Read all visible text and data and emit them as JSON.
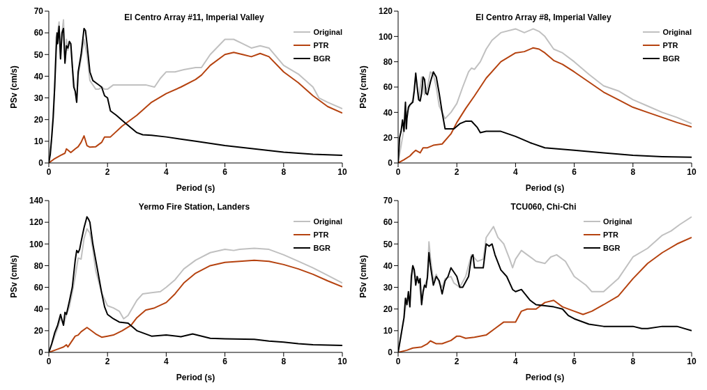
{
  "chart_data": [
    {
      "type": "line",
      "title": "El Centro Array #11, Imperial Valley",
      "xlabel": "Period (s)",
      "ylabel": "PSv (cm/s)",
      "xlim": [
        0,
        10
      ],
      "ylim": [
        0,
        70
      ],
      "xticks": [
        0,
        2,
        4,
        6,
        8,
        10
      ],
      "yticks": [
        0,
        10,
        20,
        30,
        40,
        50,
        60,
        70
      ],
      "legend": "top right",
      "series": [
        {
          "name": "Original",
          "color": "#c0c0c0",
          "x": [
            0,
            0.1,
            0.2,
            0.25,
            0.3,
            0.35,
            0.4,
            0.45,
            0.5,
            0.55,
            0.6,
            0.65,
            0.7,
            0.75,
            0.8,
            0.9,
            0.95,
            1.0,
            1.1,
            1.2,
            1.3,
            1.4,
            1.5,
            1.6,
            1.7,
            1.8,
            1.9,
            2.0,
            2.2,
            2.5,
            3.0,
            3.3,
            3.6,
            3.8,
            4.0,
            4.3,
            4.6,
            5.0,
            5.2,
            5.5,
            6.0,
            6.3,
            6.6,
            6.9,
            7.2,
            7.5,
            8.0,
            8.5,
            9.0,
            9.2,
            9.5,
            10
          ],
          "values": [
            0,
            12,
            35,
            58,
            60,
            65,
            48,
            60,
            66,
            47,
            57,
            52,
            56,
            54,
            44,
            33,
            28,
            40,
            48,
            57,
            50,
            38,
            36,
            34,
            34,
            35,
            34,
            34,
            36,
            36,
            36,
            36,
            35,
            39,
            42,
            42,
            43,
            44,
            44,
            50,
            57,
            57,
            55,
            53,
            54,
            53,
            45,
            41,
            35,
            30,
            28,
            25
          ]
        },
        {
          "name": "PTR",
          "color": "#b5420f",
          "x": [
            0,
            0.2,
            0.4,
            0.55,
            0.6,
            0.75,
            0.9,
            1.0,
            1.1,
            1.2,
            1.3,
            1.4,
            1.6,
            1.8,
            1.9,
            2.0,
            2.1,
            2.5,
            3.0,
            3.5,
            4.0,
            4.5,
            5.0,
            5.2,
            5.5,
            6.0,
            6.3,
            6.6,
            6.9,
            7.2,
            7.5,
            8.0,
            8.5,
            9.0,
            9.5,
            10
          ],
          "values": [
            0,
            2,
            3.5,
            4.5,
            6.5,
            4.8,
            6.5,
            7.5,
            9.5,
            12.5,
            8,
            7.3,
            7.5,
            9.5,
            12,
            12,
            12,
            17,
            22,
            28,
            32,
            35,
            38.5,
            40.5,
            45,
            50,
            51,
            50,
            49,
            50.5,
            49,
            42,
            37,
            31,
            26,
            23
          ]
        },
        {
          "name": "BGR",
          "color": "#000000",
          "x": [
            0,
            0.05,
            0.1,
            0.15,
            0.2,
            0.25,
            0.28,
            0.3,
            0.35,
            0.4,
            0.45,
            0.5,
            0.55,
            0.6,
            0.65,
            0.7,
            0.75,
            0.8,
            0.85,
            0.9,
            0.95,
            1.0,
            1.05,
            1.1,
            1.2,
            1.25,
            1.3,
            1.4,
            1.5,
            1.6,
            1.8,
            1.9,
            2.0,
            2.1,
            2.3,
            2.6,
            3.0,
            3.2,
            3.5,
            4,
            5,
            6,
            7,
            8,
            9,
            10
          ],
          "values": [
            0,
            4,
            12,
            21,
            35,
            52,
            60,
            55,
            63,
            48,
            60,
            62,
            46,
            54,
            53,
            56,
            55,
            45,
            35,
            33,
            28,
            42,
            46,
            50,
            62,
            61,
            55,
            42,
            38,
            37,
            35,
            31,
            30,
            24,
            22,
            18.5,
            14,
            13,
            12.8,
            12,
            10,
            8,
            6.5,
            5,
            4,
            3.5
          ]
        }
      ]
    },
    {
      "type": "line",
      "title": "El Centro Array #8, Imperial Valley",
      "xlabel": "Period (s)",
      "ylabel": "PSv (cm/s)",
      "xlim": [
        0,
        10
      ],
      "ylim": [
        0,
        120
      ],
      "xticks": [
        0,
        2,
        4,
        6,
        8,
        10
      ],
      "yticks": [
        0,
        20,
        40,
        60,
        80,
        100,
        120
      ],
      "legend": "top right",
      "series": [
        {
          "name": "Original",
          "color": "#c0c0c0",
          "x": [
            0,
            0.2,
            0.3,
            0.5,
            0.6,
            0.7,
            0.8,
            0.9,
            1.0,
            1.1,
            1.2,
            1.3,
            1.4,
            1.5,
            1.6,
            1.8,
            2.0,
            2.2,
            2.4,
            2.5,
            2.6,
            2.8,
            3.0,
            3.2,
            3.5,
            4.0,
            4.3,
            4.6,
            4.8,
            5.0,
            5.3,
            5.6,
            6.0,
            6.5,
            7.0,
            7.5,
            8.0,
            8.5,
            9.0,
            9.5,
            10
          ],
          "values": [
            0,
            27,
            40,
            50,
            69,
            50,
            68,
            54,
            60,
            72,
            70,
            60,
            45,
            40,
            35,
            40,
            47,
            60,
            72,
            75,
            74,
            80,
            90,
            97,
            103,
            106,
            103,
            106,
            104,
            100,
            90,
            87,
            80,
            70,
            61,
            57,
            50,
            45,
            40,
            36,
            31
          ]
        },
        {
          "name": "PTR",
          "color": "#b5420f",
          "x": [
            0,
            0.2,
            0.4,
            0.5,
            0.6,
            0.75,
            0.85,
            1.0,
            1.2,
            1.5,
            1.8,
            2.0,
            2.3,
            2.6,
            3.0,
            3.5,
            4.0,
            4.3,
            4.6,
            4.8,
            5.0,
            5.3,
            5.6,
            6.0,
            6.5,
            7.0,
            7.5,
            8.0,
            8.5,
            9.0,
            9.5,
            10
          ],
          "values": [
            0,
            2.5,
            5.5,
            8,
            10,
            8,
            12,
            12,
            14,
            15,
            23,
            32,
            43,
            53,
            67,
            80,
            87,
            88,
            91,
            90,
            87,
            81,
            78,
            72,
            64,
            56,
            50,
            44,
            40,
            36,
            32,
            28.5
          ]
        },
        {
          "name": "BGR",
          "color": "#000000",
          "x": [
            0,
            0.05,
            0.1,
            0.15,
            0.2,
            0.22,
            0.25,
            0.28,
            0.3,
            0.35,
            0.4,
            0.5,
            0.55,
            0.6,
            0.65,
            0.7,
            0.75,
            0.8,
            0.85,
            0.9,
            0.95,
            1.0,
            1.1,
            1.2,
            1.3,
            1.4,
            1.5,
            1.6,
            1.7,
            1.9,
            2.1,
            2.3,
            2.5,
            2.7,
            2.8,
            3.0,
            3.5,
            4.0,
            4.5,
            5.0,
            5.5,
            6,
            7,
            8,
            9,
            10
          ],
          "values": [
            0,
            20,
            25,
            34,
            25,
            35,
            48,
            27,
            35,
            44,
            46,
            48,
            57,
            71,
            60,
            50,
            49,
            55,
            68,
            66,
            55,
            54,
            64,
            72,
            68,
            55,
            40,
            27,
            27,
            27,
            31,
            33,
            33,
            28,
            24,
            25,
            25,
            21,
            16,
            12,
            11,
            10,
            8,
            6,
            5,
            4.5
          ]
        }
      ]
    },
    {
      "type": "line",
      "title": "Yermo Fire Station, Landers",
      "xlabel": "Period (s)",
      "ylabel": "PSv (cm/s)",
      "xlim": [
        0,
        10
      ],
      "ylim": [
        0,
        140
      ],
      "xticks": [
        0,
        2,
        4,
        6,
        8,
        10
      ],
      "yticks": [
        0,
        20,
        40,
        60,
        80,
        100,
        120,
        140
      ],
      "legend": "top right",
      "series": [
        {
          "name": "Original",
          "color": "#c0c0c0",
          "x": [
            0,
            0.2,
            0.3,
            0.4,
            0.5,
            0.6,
            0.7,
            0.8,
            0.9,
            1.0,
            1.1,
            1.2,
            1.3,
            1.4,
            1.5,
            1.6,
            1.8,
            2.0,
            2.2,
            2.4,
            2.55,
            2.7,
            3.0,
            3.2,
            3.5,
            3.8,
            4.0,
            4.3,
            4.6,
            5.0,
            5.5,
            6.0,
            6.3,
            6.5,
            7.0,
            7.5,
            8.0,
            8.5,
            9.0,
            9.5,
            10
          ],
          "values": [
            0,
            15,
            22,
            32,
            25,
            35,
            42,
            55,
            70,
            87,
            86,
            105,
            114,
            110,
            95,
            75,
            55,
            43,
            41,
            38,
            31,
            34,
            48,
            54,
            55,
            56,
            60,
            67,
            77,
            85,
            92,
            95,
            94,
            95,
            96,
            95,
            90,
            84,
            78,
            71,
            64
          ]
        },
        {
          "name": "PTR",
          "color": "#b5420f",
          "x": [
            0,
            0.3,
            0.5,
            0.6,
            0.65,
            0.7,
            0.9,
            1.0,
            1.1,
            1.3,
            1.4,
            1.6,
            1.8,
            2.0,
            2.2,
            2.5,
            2.8,
            3.0,
            3.3,
            3.6,
            4.0,
            4.3,
            4.6,
            5.0,
            5.5,
            6.0,
            6.5,
            7.0,
            7.5,
            8.0,
            8.5,
            9.0,
            9.5,
            10
          ],
          "values": [
            0,
            3,
            5,
            7,
            5,
            7,
            15,
            16,
            19,
            23,
            21,
            17,
            14,
            15,
            16,
            20,
            25,
            32,
            39,
            41,
            46,
            54,
            64,
            73,
            80,
            83,
            84,
            85,
            84,
            81,
            77,
            72,
            66,
            60.5
          ]
        },
        {
          "name": "BGR",
          "color": "#000000",
          "x": [
            0,
            0.1,
            0.2,
            0.3,
            0.35,
            0.4,
            0.45,
            0.5,
            0.55,
            0.6,
            0.7,
            0.8,
            0.9,
            0.95,
            1.0,
            1.05,
            1.1,
            1.2,
            1.3,
            1.35,
            1.4,
            1.5,
            1.6,
            1.7,
            1.8,
            1.9,
            2.0,
            2.2,
            2.4,
            2.7,
            3.0,
            3.5,
            4.0,
            4.5,
            4.9,
            5.5,
            6.0,
            7.0,
            7.5,
            8.0,
            8.5,
            9.0,
            10
          ],
          "values": [
            0,
            8,
            18,
            25,
            30,
            35,
            30,
            25,
            37,
            35,
            47,
            60,
            85,
            94,
            92,
            95,
            102,
            115,
            125,
            123,
            120,
            100,
            85,
            70,
            55,
            42,
            35,
            31,
            28,
            27,
            20,
            15,
            16,
            14.5,
            17,
            13,
            12.5,
            12,
            10.5,
            9.5,
            8,
            7,
            6.5
          ]
        }
      ]
    },
    {
      "type": "line",
      "title": "TCU060, Chi-Chi",
      "xlabel": "Period (s)",
      "ylabel": "PSv (cm/s)",
      "xlim": [
        0,
        10
      ],
      "ylim": [
        0,
        70
      ],
      "xticks": [
        0,
        2,
        4,
        6,
        8,
        10
      ],
      "yticks": [
        0,
        10,
        20,
        30,
        40,
        50,
        60,
        70
      ],
      "legend": "top",
      "series": [
        {
          "name": "Original",
          "color": "#c0c0c0",
          "x": [
            0,
            0.2,
            0.3,
            0.4,
            0.5,
            0.6,
            0.7,
            0.8,
            0.9,
            1.0,
            1.05,
            1.1,
            1.2,
            1.3,
            1.4,
            1.5,
            1.6,
            1.8,
            1.9,
            2.0,
            2.1,
            2.3,
            2.5,
            2.7,
            2.9,
            3.0,
            3.1,
            3.25,
            3.4,
            3.6,
            3.8,
            3.9,
            4.0,
            4.2,
            4.4,
            4.7,
            5.0,
            5.2,
            5.4,
            5.7,
            6.0,
            6.4,
            6.6,
            7.0,
            7.5,
            8.0,
            8.5,
            9.0,
            9.3,
            9.6,
            10
          ],
          "values": [
            0,
            16,
            25,
            23,
            39,
            35,
            34,
            23,
            31,
            34,
            51,
            44,
            33,
            36,
            32,
            30,
            34,
            35,
            32,
            31,
            30,
            35,
            45,
            42,
            43,
            53,
            55,
            58,
            53,
            50,
            43,
            39,
            43,
            47,
            45,
            42,
            41,
            44,
            45,
            42,
            35,
            31,
            28,
            28,
            34,
            44,
            48,
            54,
            56,
            59,
            62.5
          ]
        },
        {
          "name": "PTR",
          "color": "#b5420f",
          "x": [
            0,
            0.3,
            0.5,
            0.8,
            1.0,
            1.1,
            1.3,
            1.5,
            1.8,
            2.0,
            2.1,
            2.3,
            2.6,
            3.0,
            3.3,
            3.6,
            4.0,
            4.2,
            4.4,
            4.7,
            5.0,
            5.3,
            5.6,
            6.0,
            6.3,
            6.6,
            7.0,
            7.5,
            8.0,
            8.5,
            9.0,
            9.5,
            10
          ],
          "values": [
            0,
            1,
            2,
            2.5,
            4,
            5.3,
            4,
            4,
            5.5,
            7.5,
            7.5,
            6.5,
            7,
            8,
            11,
            14,
            14,
            19,
            20,
            20,
            23,
            24,
            21,
            19,
            17.5,
            19,
            22,
            26,
            34,
            41,
            46,
            50,
            53
          ]
        },
        {
          "name": "BGR",
          "color": "#000000",
          "x": [
            0,
            0.1,
            0.2,
            0.25,
            0.3,
            0.35,
            0.4,
            0.45,
            0.5,
            0.55,
            0.6,
            0.65,
            0.7,
            0.75,
            0.8,
            0.85,
            0.9,
            0.95,
            1.0,
            1.05,
            1.1,
            1.2,
            1.3,
            1.4,
            1.5,
            1.55,
            1.6,
            1.7,
            1.8,
            1.9,
            2.0,
            2.1,
            2.2,
            2.4,
            2.5,
            2.55,
            2.6,
            2.7,
            2.9,
            3.0,
            3.1,
            3.2,
            3.3,
            3.5,
            3.7,
            3.9,
            4.0,
            4.2,
            4.5,
            4.7,
            5.0,
            5.3,
            5.6,
            5.8,
            6.0,
            6.5,
            7.0,
            8.0,
            8.3,
            8.5,
            9.0,
            9.5,
            10
          ],
          "values": [
            0,
            8,
            16,
            25,
            22,
            28,
            21,
            35,
            40,
            38,
            31,
            35,
            32,
            34,
            22,
            28,
            31,
            30,
            35,
            46,
            40,
            31,
            35,
            33,
            27,
            30,
            33,
            35,
            39,
            37,
            35,
            30,
            30,
            35,
            44,
            45,
            39,
            39,
            39,
            50,
            49,
            50,
            45,
            38,
            35,
            29,
            28,
            29,
            24,
            22,
            21.5,
            21,
            20,
            17,
            15.5,
            13,
            12,
            12,
            11,
            11,
            12,
            12,
            10
          ]
        }
      ]
    }
  ]
}
